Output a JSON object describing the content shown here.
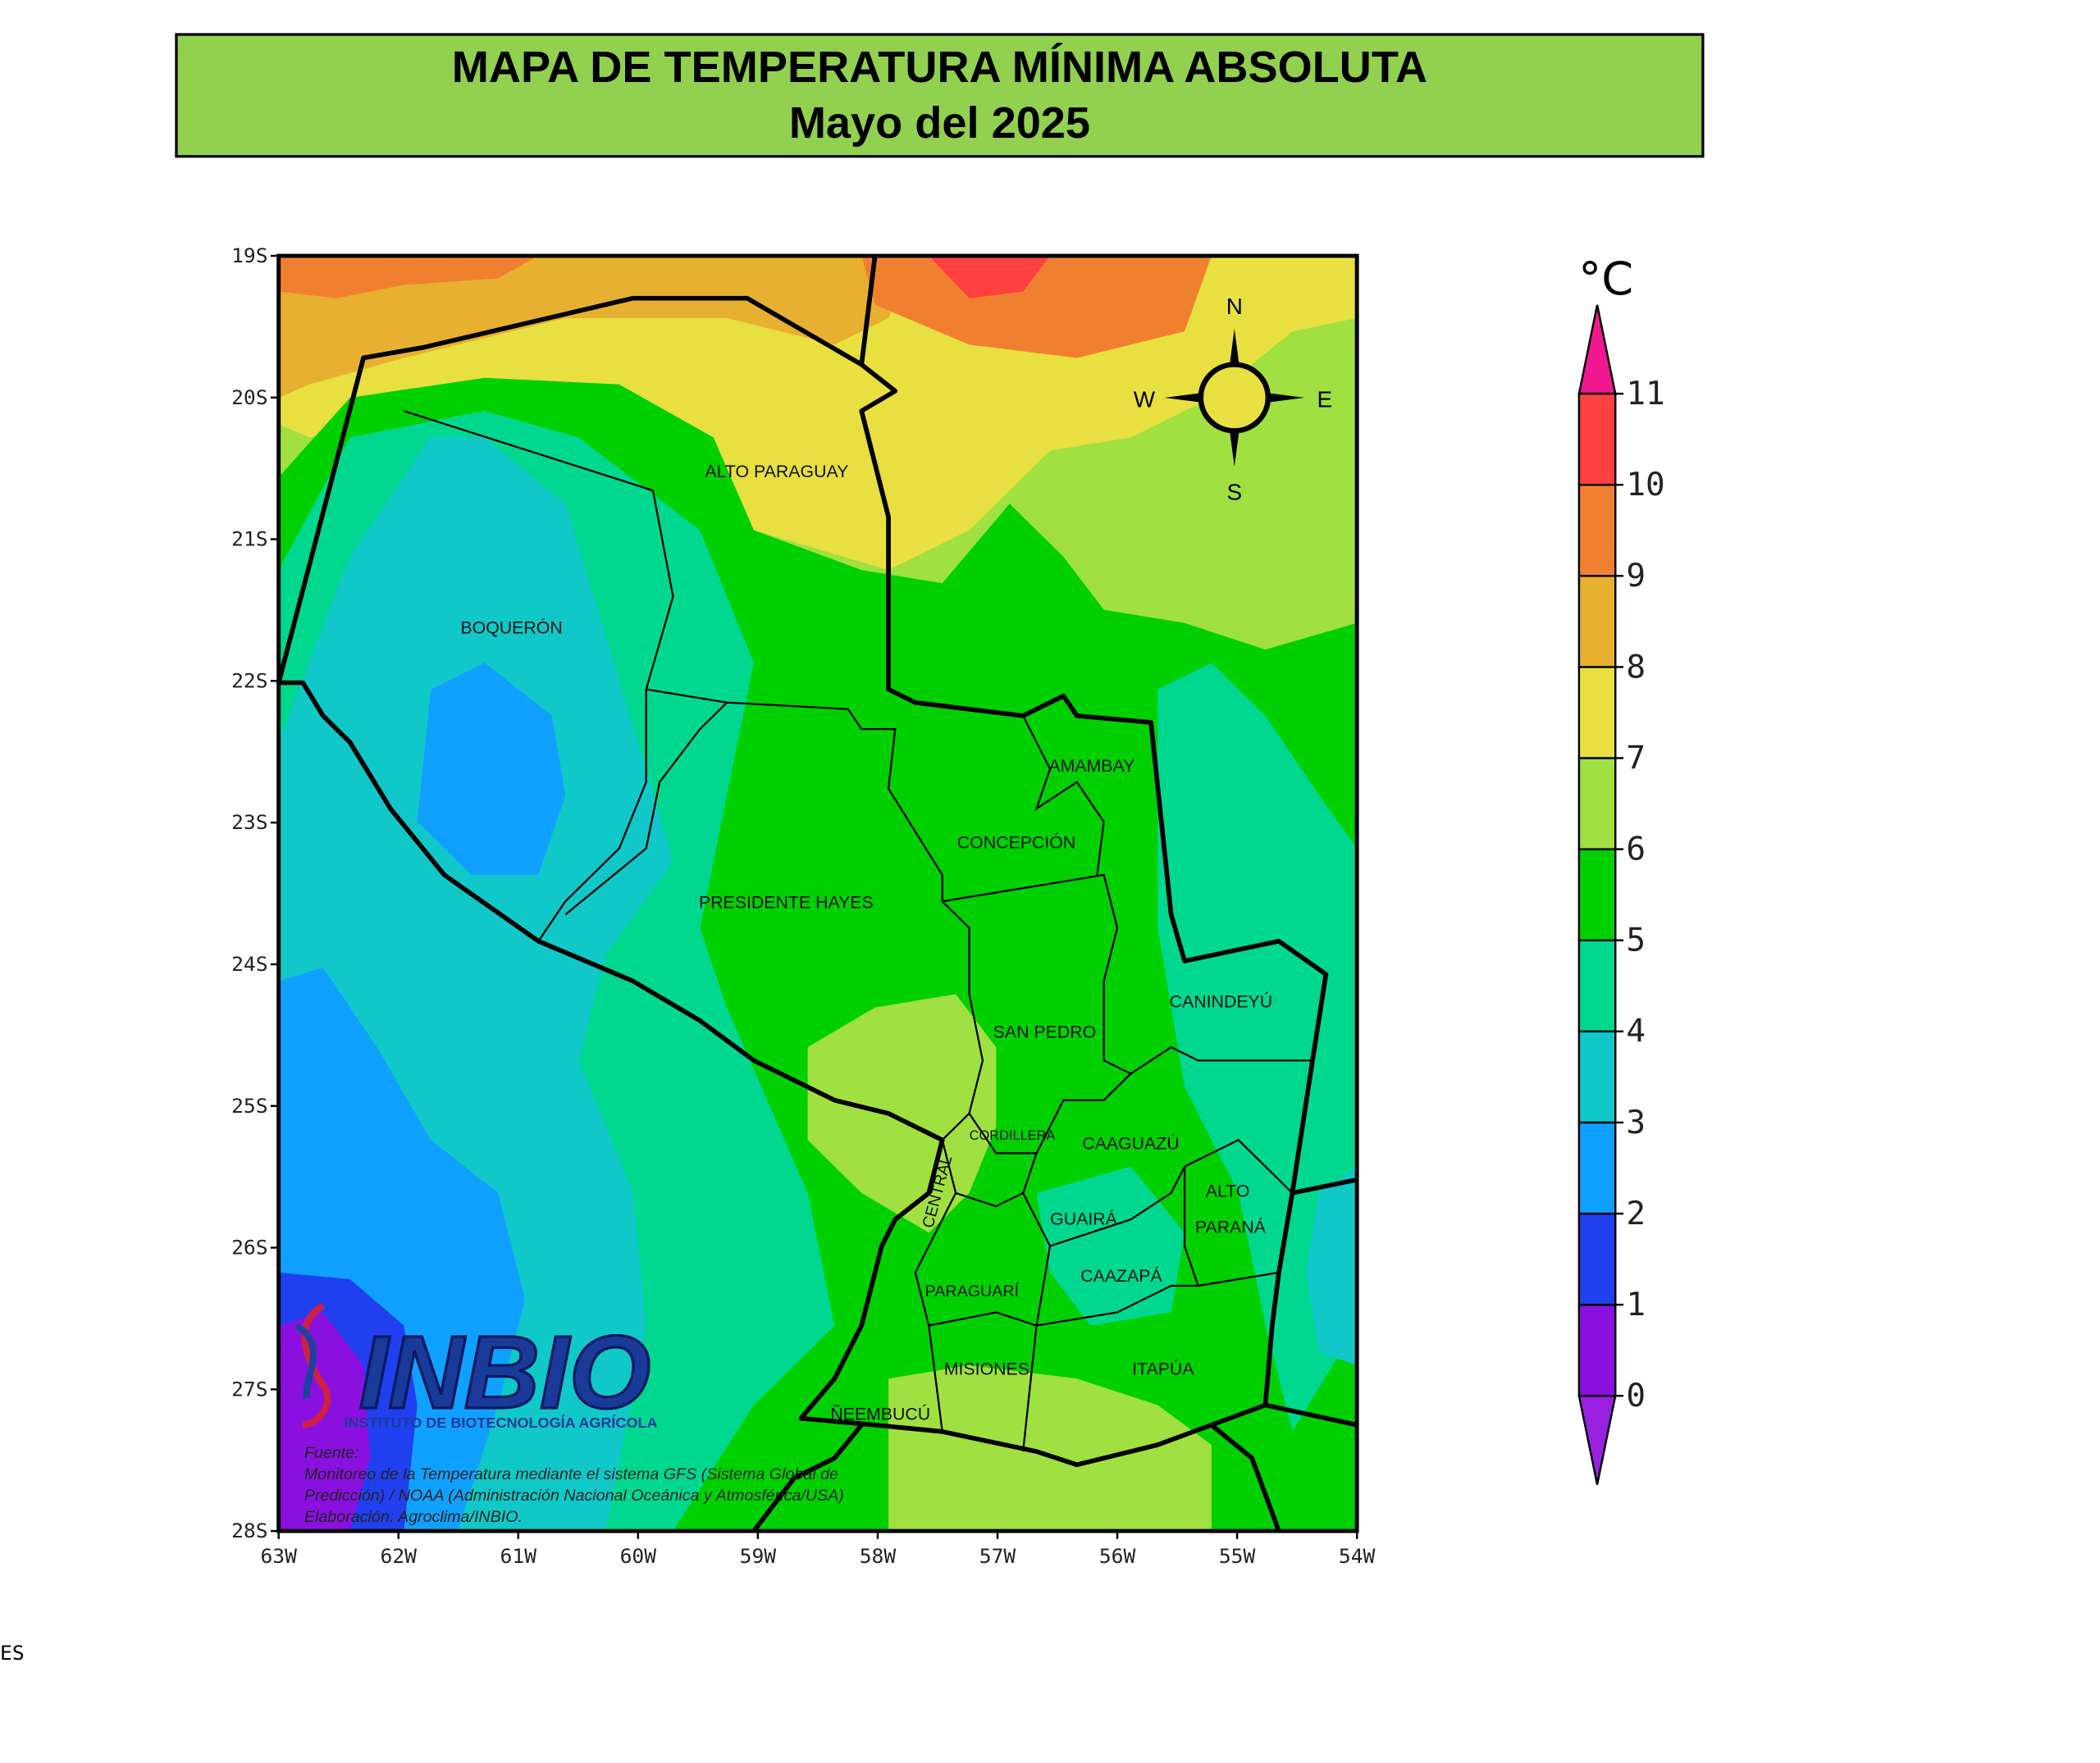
{
  "header": {
    "title": "MAPA DE TEMPERATURA MÍNIMA ABSOLUTA",
    "subtitle": "Mayo del 2025"
  },
  "map": {
    "lat_ticks": [
      "19S",
      "20S",
      "21S",
      "22S",
      "23S",
      "24S",
      "25S",
      "26S",
      "27S",
      "28S"
    ],
    "lon_ticks": [
      "63W",
      "62W",
      "61W",
      "60W",
      "59W",
      "58W",
      "57W",
      "56W",
      "55W",
      "54W"
    ],
    "departments": [
      "ALTO PARAGUAY",
      "BOQUERÓN",
      "AMAMBAY",
      "CONCEPCIÓN",
      "PRESIDENTE HAYES",
      "CANINDEYÚ",
      "SAN PEDRO",
      "CORDILLERA",
      "CAAGUAZÚ",
      "CENTRAL",
      "ALTO",
      "PARANÁ",
      "GUAIRÁ",
      "CAAZAPÁ",
      "PARAGUARÍ",
      "MISIONES",
      "ITAPÚA",
      "ÑEEMBUCÚ"
    ],
    "compass": [
      "N",
      "W",
      "E",
      "S"
    ]
  },
  "colorbar": {
    "unit": "°C",
    "ticks": [
      0,
      1,
      2,
      3,
      4,
      5,
      6,
      7,
      8,
      9,
      10,
      11
    ],
    "colors": [
      "#8a10e0",
      "#2040f0",
      "#10a0ff",
      "#10c8c8",
      "#00d890",
      "#00d000",
      "#a0e040",
      "#e8e040",
      "#e8b030",
      "#f08030",
      "#ff4040"
    ],
    "under_color": "#9a20e0",
    "over_color": "#f01890"
  },
  "logo": {
    "name": "INBIO",
    "subtitle": "INSTITUTO DE BIOTECNOLOGÍA AGRÍCOLA"
  },
  "source": [
    "Fuente:",
    "Monitoreo de la Temperatura mediante el sistema GFS (Sistema Global de",
    "Predicción) / NOAA (Administración Nacional Oceánica y Atmosférica/USA)",
    "Elaboración: Agroclima/INBIO."
  ],
  "footer_fragment": "ES"
}
